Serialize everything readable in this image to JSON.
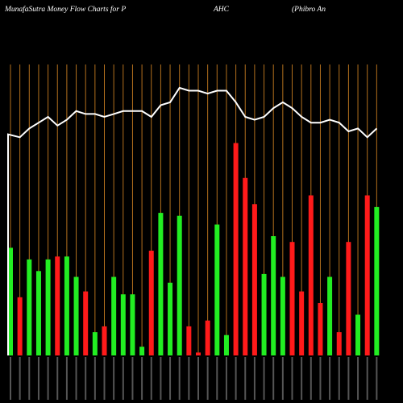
{
  "header": {
    "title_left": "MunafaSutra  Money Flow  Charts for P",
    "title_mid": "AHC",
    "title_right": "(Phibro   An"
  },
  "chart_data": {
    "type": "bar",
    "title": "MunafaSutra Money Flow Charts for PAHC",
    "ylim": [
      0,
      100
    ],
    "grid": "vertical",
    "bars": [
      {
        "value": 37,
        "color": "green"
      },
      {
        "value": 20,
        "color": "red"
      },
      {
        "value": 33,
        "color": "green"
      },
      {
        "value": 29,
        "color": "green"
      },
      {
        "value": 33,
        "color": "green"
      },
      {
        "value": 34,
        "color": "red"
      },
      {
        "value": 34,
        "color": "green"
      },
      {
        "value": 27,
        "color": "green"
      },
      {
        "value": 22,
        "color": "red"
      },
      {
        "value": 8,
        "color": "green"
      },
      {
        "value": 10,
        "color": "red"
      },
      {
        "value": 27,
        "color": "green"
      },
      {
        "value": 21,
        "color": "green"
      },
      {
        "value": 21,
        "color": "green"
      },
      {
        "value": 3,
        "color": "green"
      },
      {
        "value": 36,
        "color": "red"
      },
      {
        "value": 49,
        "color": "green"
      },
      {
        "value": 25,
        "color": "green"
      },
      {
        "value": 48,
        "color": "green"
      },
      {
        "value": 10,
        "color": "red"
      },
      {
        "value": 1,
        "color": "red"
      },
      {
        "value": 12,
        "color": "red"
      },
      {
        "value": 45,
        "color": "green"
      },
      {
        "value": 7,
        "color": "green"
      },
      {
        "value": 73,
        "color": "red"
      },
      {
        "value": 61,
        "color": "red"
      },
      {
        "value": 52,
        "color": "red"
      },
      {
        "value": 28,
        "color": "green"
      },
      {
        "value": 41,
        "color": "green"
      },
      {
        "value": 27,
        "color": "green"
      },
      {
        "value": 39,
        "color": "red"
      },
      {
        "value": 22,
        "color": "red"
      },
      {
        "value": 55,
        "color": "red"
      },
      {
        "value": 18,
        "color": "red"
      },
      {
        "value": 27,
        "color": "green"
      },
      {
        "value": 8,
        "color": "red"
      },
      {
        "value": 39,
        "color": "red"
      },
      {
        "value": 14,
        "color": "green"
      },
      {
        "value": 55,
        "color": "red"
      },
      {
        "value": 51,
        "color": "green"
      }
    ],
    "price_line": [
      76,
      75,
      78,
      80,
      82,
      79,
      81,
      84,
      83,
      83,
      82,
      83,
      84,
      84,
      84,
      82,
      86,
      87,
      92,
      91,
      91,
      90,
      91,
      91,
      87,
      82,
      81,
      82,
      85,
      87,
      85,
      82,
      80,
      80,
      81,
      80,
      77,
      78,
      75,
      78
    ]
  }
}
